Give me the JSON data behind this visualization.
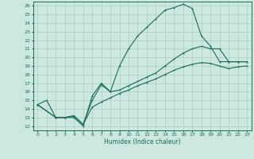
{
  "xlabel": "Humidex (Indice chaleur)",
  "bg_color": "#cce8e0",
  "grid_color": "#aaccc4",
  "line_color": "#1a6b5a",
  "xlim": [
    -0.5,
    23.5
  ],
  "ylim": [
    11.5,
    26.5
  ],
  "xticks": [
    0,
    1,
    2,
    3,
    4,
    5,
    6,
    7,
    8,
    9,
    10,
    11,
    12,
    13,
    14,
    15,
    16,
    17,
    18,
    19,
    20,
    21,
    22,
    23
  ],
  "yticks": [
    12,
    13,
    14,
    15,
    16,
    17,
    18,
    19,
    20,
    21,
    22,
    23,
    24,
    25,
    26
  ],
  "line1_x": [
    0,
    1,
    2,
    3,
    4,
    5,
    6,
    7,
    8,
    9,
    10,
    11,
    12,
    13,
    14,
    15,
    16,
    17,
    18,
    19,
    20,
    21,
    22,
    23
  ],
  "line1_y": [
    14.5,
    15.0,
    13.0,
    13.0,
    13.0,
    12.0,
    15.5,
    17.0,
    16.0,
    19.0,
    21.0,
    22.5,
    23.5,
    24.5,
    25.5,
    25.8,
    26.2,
    25.7,
    22.5,
    21.3,
    19.5,
    19.5,
    19.5,
    19.5
  ],
  "line2_x": [
    0,
    2,
    3,
    4,
    5,
    6,
    7,
    8,
    9,
    10,
    11,
    12,
    13,
    14,
    15,
    16,
    17,
    18,
    19,
    20,
    21,
    22,
    23
  ],
  "line2_y": [
    14.5,
    13.0,
    13.0,
    13.2,
    12.2,
    15.0,
    16.8,
    16.0,
    16.2,
    16.7,
    17.2,
    17.7,
    18.2,
    19.0,
    19.8,
    20.5,
    21.0,
    21.3,
    21.0,
    21.0,
    19.5,
    19.5,
    19.5
  ],
  "line3_x": [
    0,
    2,
    3,
    4,
    5,
    6,
    7,
    8,
    9,
    10,
    11,
    12,
    13,
    14,
    15,
    16,
    17,
    18,
    19,
    20,
    21,
    22,
    23
  ],
  "line3_y": [
    14.5,
    13.0,
    13.0,
    13.2,
    12.2,
    14.2,
    14.8,
    15.3,
    15.8,
    16.2,
    16.7,
    17.1,
    17.5,
    18.0,
    18.5,
    18.9,
    19.2,
    19.4,
    19.3,
    19.0,
    18.7,
    18.9,
    19.0
  ]
}
